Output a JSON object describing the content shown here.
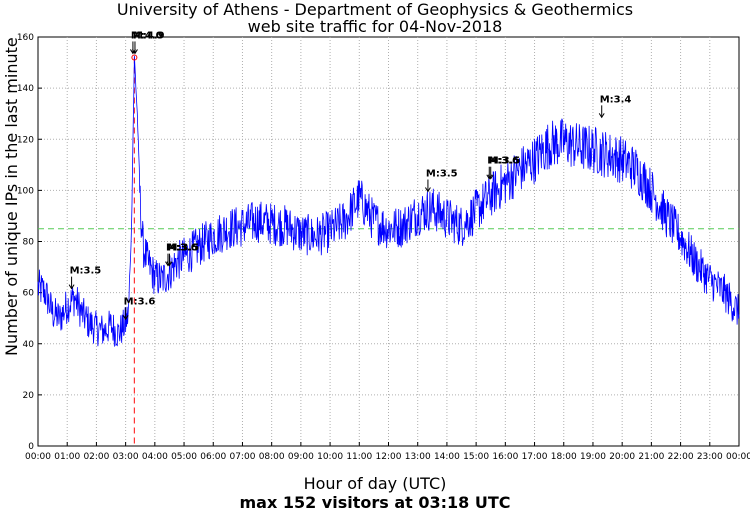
{
  "chart_data": {
    "type": "line",
    "title": "University of Athens - Department of Geophysics & Geothermics",
    "subtitle": "web site traffic for 04-Nov-2018",
    "xlabel": "Hour of day (UTC)",
    "ylabel": "Number of unique IPs in the last minute",
    "footer": "max 152 visitors at 03:18 UTC",
    "xlim": [
      0,
      24
    ],
    "ylim": [
      0,
      160
    ],
    "x_ticks": [
      "00:00",
      "01:00",
      "02:00",
      "03:00",
      "04:00",
      "05:00",
      "06:00",
      "07:00",
      "08:00",
      "09:00",
      "10:00",
      "11:00",
      "12:00",
      "13:00",
      "14:00",
      "15:00",
      "16:00",
      "17:00",
      "18:00",
      "19:00",
      "20:00",
      "21:00",
      "22:00",
      "23:00",
      "00:00"
    ],
    "y_ticks": [
      "0",
      "20",
      "40",
      "60",
      "80",
      "100",
      "120",
      "140",
      "160"
    ],
    "grid": true,
    "average_line": 85,
    "max_marker": {
      "time": "03:18",
      "value": 152
    },
    "series": [
      {
        "color": "#0000ff",
        "x": [
          0,
          0.25,
          0.5,
          0.75,
          1.0,
          1.25,
          1.5,
          1.75,
          2.0,
          2.25,
          2.5,
          2.75,
          3.0,
          3.1,
          3.2,
          3.3,
          3.4,
          3.5,
          3.6,
          3.75,
          4.0,
          4.25,
          4.5,
          4.75,
          5.0,
          5.5,
          6.0,
          6.5,
          7.0,
          7.5,
          8.0,
          8.5,
          9.0,
          9.5,
          10.0,
          10.5,
          11.0,
          11.5,
          12.0,
          12.5,
          13.0,
          13.5,
          14.0,
          14.5,
          15.0,
          15.5,
          16.0,
          16.5,
          17.0,
          17.5,
          18.0,
          18.5,
          19.0,
          19.5,
          20.0,
          20.5,
          21.0,
          21.5,
          22.0,
          22.5,
          23.0,
          23.5,
          24.0
        ],
        "y": [
          62,
          60,
          52,
          50,
          55,
          58,
          52,
          48,
          46,
          45,
          47,
          44,
          48,
          52,
          85,
          152,
          130,
          95,
          78,
          72,
          66,
          65,
          68,
          72,
          74,
          78,
          82,
          85,
          86,
          88,
          87,
          86,
          83,
          82,
          84,
          88,
          97,
          88,
          85,
          86,
          91,
          93,
          89,
          86,
          92,
          98,
          103,
          108,
          112,
          118,
          119,
          117,
          116,
          114,
          112,
          108,
          100,
          90,
          82,
          72,
          65,
          60,
          52
        ]
      }
    ],
    "annotations": [
      {
        "time": 1.15,
        "y": 60,
        "text": "M:3.5"
      },
      {
        "time": 3.0,
        "y": 48,
        "text": "M:3.6"
      },
      {
        "time": 3.25,
        "y": 152,
        "text": "M:4.0"
      },
      {
        "time": 3.32,
        "y": 152,
        "text": "M:4.9"
      },
      {
        "time": 4.45,
        "y": 69,
        "text": "M:3.6"
      },
      {
        "time": 4.5,
        "y": 69,
        "text": "M:3.5"
      },
      {
        "time": 13.35,
        "y": 98,
        "text": "M:3.5"
      },
      {
        "time": 15.45,
        "y": 103,
        "text": "M:3.6"
      },
      {
        "time": 15.5,
        "y": 103,
        "text": "M:3.5"
      },
      {
        "time": 19.3,
        "y": 127,
        "text": "M:3.4"
      }
    ]
  }
}
